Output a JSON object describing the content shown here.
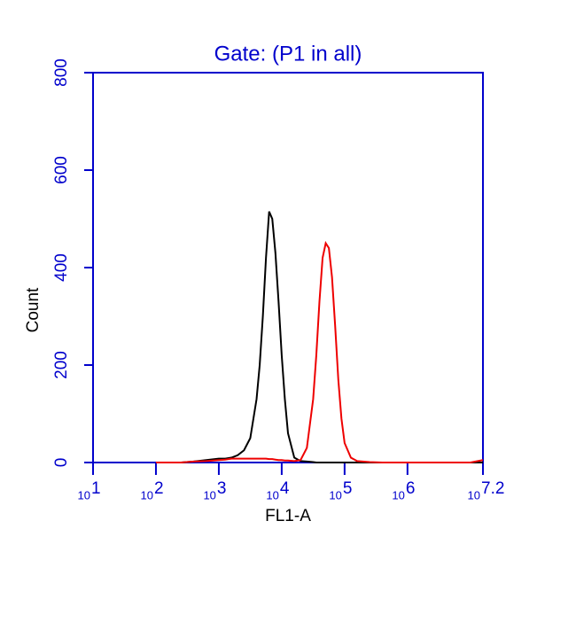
{
  "chart_data": {
    "type": "line",
    "title": "Gate: (P1 in all)",
    "xlabel": "FL1-A",
    "ylabel": "Count",
    "xscale": "log",
    "xlim": [
      10,
      15848932
    ],
    "ylim": [
      0,
      800
    ],
    "xticks": [
      {
        "value": 10,
        "base": "10",
        "exponent": "1"
      },
      {
        "value": 100,
        "base": "10",
        "exponent": "2"
      },
      {
        "value": 1000,
        "base": "10",
        "exponent": "3"
      },
      {
        "value": 10000,
        "base": "10",
        "exponent": "4"
      },
      {
        "value": 100000,
        "base": "10",
        "exponent": "5"
      },
      {
        "value": 1000000,
        "base": "10",
        "exponent": "6"
      },
      {
        "value": 15848932,
        "base": "10",
        "exponent": "7.2"
      }
    ],
    "yticks": [
      0,
      200,
      400,
      600,
      800
    ],
    "axis_color": "#0000cc",
    "x": [
      100,
      158,
      251,
      398,
      631,
      1000,
      1259,
      1585,
      1995,
      2512,
      3162,
      3981,
      4467,
      5012,
      5623,
      6310,
      7079,
      7943,
      8913,
      10000,
      11220,
      12589,
      15849,
      19953,
      25119,
      31623,
      35481,
      39811,
      44668,
      50119,
      56234,
      63096,
      70795,
      79433,
      89125,
      100000,
      125893,
      158489,
      251189,
      398107,
      630957,
      1000000,
      3162278,
      10000000,
      15848932
    ],
    "series": [
      {
        "color": "#000000",
        "values": [
          0,
          0,
          0,
          2,
          5,
          8,
          8,
          10,
          15,
          25,
          50,
          130,
          200,
          300,
          420,
          515,
          500,
          430,
          330,
          220,
          130,
          60,
          10,
          3,
          2,
          1,
          0,
          0,
          0,
          0,
          0,
          0,
          0,
          0,
          0,
          0,
          0,
          0,
          0,
          0,
          0,
          0,
          0,
          0,
          0
        ]
      },
      {
        "color": "#ee0000",
        "values": [
          0,
          0,
          0,
          2,
          3,
          5,
          6,
          8,
          8,
          8,
          8,
          8,
          8,
          8,
          8,
          7,
          7,
          6,
          5,
          5,
          4,
          4,
          3,
          5,
          30,
          130,
          220,
          330,
          420,
          450,
          440,
          380,
          280,
          170,
          90,
          40,
          10,
          3,
          1,
          0,
          0,
          0,
          0,
          0,
          5
        ]
      }
    ]
  }
}
